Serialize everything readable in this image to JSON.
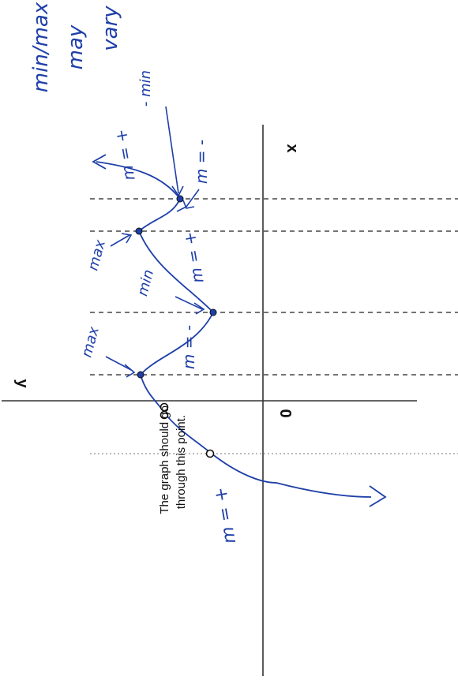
{
  "axes": {
    "x_label": "x",
    "y_label": "y",
    "origin_label": "0"
  },
  "annotations": {
    "top_note": [
      "min/max",
      "may",
      "vary"
    ],
    "min_top": "- min",
    "slope_pos_upper": "m = +",
    "slope_neg_upper": "m = -",
    "max_upper": "max",
    "min_mid": "min",
    "slope_pos_mid": "m = +",
    "max_lower": "max",
    "slope_neg_lower": "m = -",
    "slope_pos_lower": "m = +",
    "graph_note_line1": "The graph should go",
    "graph_note_line2": "through this point."
  },
  "colors": {
    "ink": "#1e3fa8",
    "print": "#111111"
  }
}
